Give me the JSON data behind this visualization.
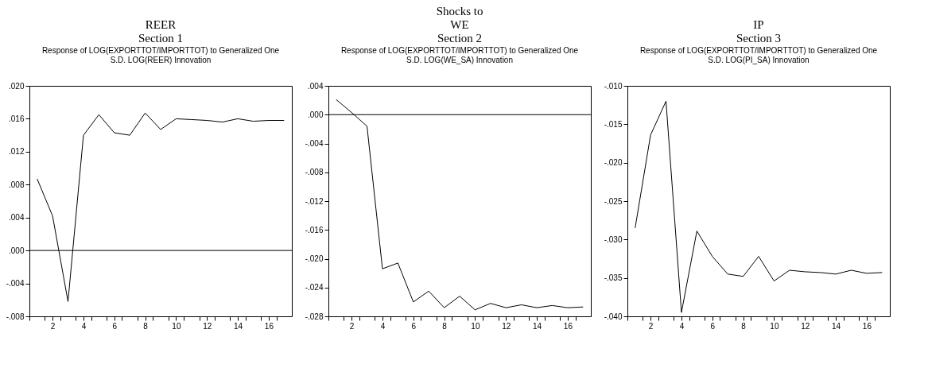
{
  "chart_data": [
    {
      "type": "line",
      "title": "Response of LOG(EXPORTTOT/IMPORTTOT) to Generalized One",
      "subtitle": "S.D. LOG(REER) Innovation",
      "annotations": [
        "REER",
        "Section 1"
      ],
      "x": [
        1,
        2,
        3,
        4,
        5,
        6,
        7,
        8,
        9,
        10,
        11,
        12,
        13,
        14,
        15,
        16,
        17
      ],
      "series": [
        {
          "color": "#000000",
          "values": [
            0.0087,
            0.0042,
            -0.0062,
            0.014,
            0.0165,
            0.0143,
            0.014,
            0.0167,
            0.0147,
            0.016,
            0.0159,
            0.0158,
            0.0156,
            0.016,
            0.0157,
            0.0158,
            0.0158
          ]
        }
      ],
      "xlim": [
        0.5,
        17.5
      ],
      "xticks": [
        {
          "value": 0.5,
          "label": null
        },
        {
          "value": 1.5,
          "label": null
        },
        2,
        {
          "value": 2.5,
          "label": null
        },
        {
          "value": 3.5,
          "label": null
        },
        4,
        {
          "value": 4.5,
          "label": null
        },
        {
          "value": 5.5,
          "label": null
        },
        6,
        {
          "value": 6.5,
          "label": null
        },
        {
          "value": 7.5,
          "label": null
        },
        8,
        {
          "value": 8.5,
          "label": null
        },
        {
          "value": 9.5,
          "label": null
        },
        10,
        {
          "value": 10.5,
          "label": null
        },
        {
          "value": 11.5,
          "label": null
        },
        12,
        {
          "value": 12.5,
          "label": null
        },
        {
          "value": 13.5,
          "label": null
        },
        14,
        {
          "value": 14.5,
          "label": null
        },
        {
          "value": 15.5,
          "label": null
        },
        16,
        {
          "value": 16.5,
          "label": null
        }
      ],
      "ylim": [
        -0.008,
        0.02
      ],
      "yticks": [
        {
          "value": -0.008,
          "label": "-.008"
        },
        {
          "value": -0.004,
          "label": "-.004"
        },
        {
          "value": 0,
          "label": ".000"
        },
        {
          "value": 0.004,
          "label": ".004"
        },
        {
          "value": 0.008,
          "label": ".008"
        },
        {
          "value": 0.012,
          "label": ".012"
        },
        {
          "value": 0.016,
          "label": ".016"
        },
        {
          "value": 0.02,
          "label": ".020"
        }
      ],
      "ref_lines": [
        {
          "axis": "y",
          "value": 0
        }
      ],
      "grid": false
    },
    {
      "type": "line",
      "title": "Response of LOG(EXPORTTOT/IMPORTTOT) to Generalized One",
      "subtitle": "S.D. LOG(WE_SA) Innovation",
      "annotations": [
        "Shocks to",
        "WE",
        "Section 2"
      ],
      "x": [
        1,
        2,
        3,
        4,
        5,
        6,
        7,
        8,
        9,
        10,
        11,
        12,
        13,
        14,
        15,
        16,
        17
      ],
      "series": [
        {
          "color": "#000000",
          "values": [
            0.0021,
            0.0003,
            -0.0016,
            -0.0214,
            -0.0206,
            -0.026,
            -0.0245,
            -0.0268,
            -0.0252,
            -0.0271,
            -0.0262,
            -0.0268,
            -0.0264,
            -0.0268,
            -0.0265,
            -0.0268,
            -0.0267
          ]
        }
      ],
      "xlim": [
        0.5,
        17.5
      ],
      "xticks": [
        {
          "value": 0.5,
          "label": null
        },
        {
          "value": 1.5,
          "label": null
        },
        2,
        {
          "value": 2.5,
          "label": null
        },
        {
          "value": 3.5,
          "label": null
        },
        4,
        {
          "value": 4.5,
          "label": null
        },
        {
          "value": 5.5,
          "label": null
        },
        6,
        {
          "value": 6.5,
          "label": null
        },
        {
          "value": 7.5,
          "label": null
        },
        8,
        {
          "value": 8.5,
          "label": null
        },
        {
          "value": 9.5,
          "label": null
        },
        10,
        {
          "value": 10.5,
          "label": null
        },
        {
          "value": 11.5,
          "label": null
        },
        12,
        {
          "value": 12.5,
          "label": null
        },
        {
          "value": 13.5,
          "label": null
        },
        14,
        {
          "value": 14.5,
          "label": null
        },
        {
          "value": 15.5,
          "label": null
        },
        16,
        {
          "value": 16.5,
          "label": null
        }
      ],
      "ylim": [
        -0.028,
        0.004
      ],
      "yticks": [
        {
          "value": -0.028,
          "label": "-.028"
        },
        {
          "value": -0.024,
          "label": "-.024"
        },
        {
          "value": -0.02,
          "label": "-.020"
        },
        {
          "value": -0.016,
          "label": "-.016"
        },
        {
          "value": -0.012,
          "label": "-.012"
        },
        {
          "value": -0.008,
          "label": "-.008"
        },
        {
          "value": -0.004,
          "label": "-.004"
        },
        {
          "value": 0,
          "label": ".000"
        },
        {
          "value": 0.004,
          "label": ".004"
        }
      ],
      "ref_lines": [
        {
          "axis": "y",
          "value": 0
        }
      ],
      "grid": false
    },
    {
      "type": "line",
      "title": "Response of LOG(EXPORTTOT/IMPORTTOT) to Generalized One",
      "subtitle": "S.D. LOG(PI_SA) Innovation",
      "annotations": [
        "IP",
        "Section 3"
      ],
      "x": [
        1,
        2,
        3,
        4,
        5,
        6,
        7,
        8,
        9,
        10,
        11,
        12,
        13,
        14,
        15,
        16,
        17
      ],
      "series": [
        {
          "color": "#000000",
          "values": [
            -0.0285,
            -0.0164,
            -0.012,
            -0.0395,
            -0.0289,
            -0.0322,
            -0.0345,
            -0.0348,
            -0.0322,
            -0.0354,
            -0.034,
            -0.0342,
            -0.0343,
            -0.0345,
            -0.034,
            -0.0344,
            -0.0343
          ]
        }
      ],
      "xlim": [
        0.5,
        17.5
      ],
      "xticks": [
        {
          "value": 0.5,
          "label": null
        },
        {
          "value": 1.5,
          "label": null
        },
        2,
        {
          "value": 2.5,
          "label": null
        },
        {
          "value": 3.5,
          "label": null
        },
        4,
        {
          "value": 4.5,
          "label": null
        },
        {
          "value": 5.5,
          "label": null
        },
        6,
        {
          "value": 6.5,
          "label": null
        },
        {
          "value": 7.5,
          "label": null
        },
        8,
        {
          "value": 8.5,
          "label": null
        },
        {
          "value": 9.5,
          "label": null
        },
        10,
        {
          "value": 10.5,
          "label": null
        },
        {
          "value": 11.5,
          "label": null
        },
        12,
        {
          "value": 12.5,
          "label": null
        },
        {
          "value": 13.5,
          "label": null
        },
        14,
        {
          "value": 14.5,
          "label": null
        },
        {
          "value": 15.5,
          "label": null
        },
        16,
        {
          "value": 16.5,
          "label": null
        }
      ],
      "ylim": [
        -0.04,
        -0.01
      ],
      "yticks": [
        {
          "value": -0.04,
          "label": "-.040"
        },
        {
          "value": -0.035,
          "label": "-.035"
        },
        {
          "value": -0.03,
          "label": "-.030"
        },
        {
          "value": -0.025,
          "label": "-.025"
        },
        {
          "value": -0.02,
          "label": "-.020"
        },
        {
          "value": -0.015,
          "label": "-.015"
        },
        {
          "value": -0.01,
          "label": "-.010"
        }
      ],
      "grid": false
    }
  ]
}
